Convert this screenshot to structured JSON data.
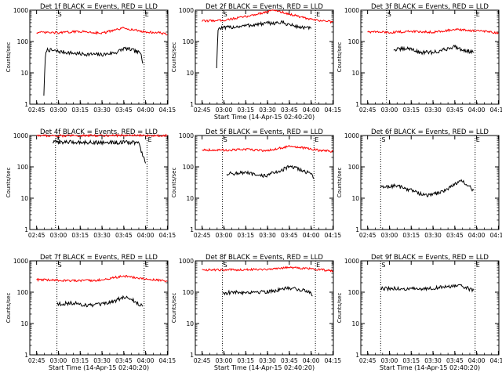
{
  "figure": {
    "x_ticks": [
      "02:45",
      "03:00",
      "03:15",
      "03:30",
      "03:45",
      "04:00",
      "04:15"
    ],
    "y_ticks": [
      "1",
      "10",
      "100",
      "1000"
    ],
    "ylabel": "Counts/sec",
    "xlabel": "Start Time (14-Apr-15 02:40:20)",
    "marker_start": "S",
    "marker_end": "E",
    "colors": {
      "events": "#000000",
      "lld": "#ff0000",
      "axes": "#000000"
    }
  },
  "chart_data": [
    {
      "type": "line",
      "title": "Det 1f BLACK = Events, RED = LLD",
      "xlabel": "Start Time (14-Apr-15 02:40:20)",
      "ylabel": "Counts/sec",
      "yscale": "log",
      "ylim": [
        1,
        1000
      ],
      "xlim_minutes": [
        0,
        95
      ],
      "has_xlabel": false,
      "x_ticks": [
        "02:45",
        "03:00",
        "03:15",
        "03:30",
        "03:45",
        "04:00",
        "04:15"
      ],
      "vlines": [
        "02:59",
        "03:59"
      ],
      "series": [
        {
          "name": "Events",
          "color": "#000000",
          "x": [
            "02:50",
            "02:51",
            "02:52",
            "03:00",
            "03:15",
            "03:30",
            "03:40",
            "03:45",
            "03:50",
            "03:55",
            "03:57",
            "03:58"
          ],
          "y": [
            2,
            30,
            55,
            48,
            40,
            38,
            45,
            60,
            55,
            45,
            40,
            20
          ]
        },
        {
          "name": "LLD",
          "color": "#000000",
          "x": [
            "02:45",
            "03:00",
            "03:15",
            "03:30",
            "03:45",
            "04:00",
            "04:10",
            "04:15"
          ],
          "y": [
            195,
            190,
            210,
            185,
            270,
            200,
            190,
            165
          ]
        }
      ]
    },
    {
      "type": "line",
      "title": "Det 2f BLACK = Events, RED = LLD",
      "xlabel": "Start Time (14-Apr-15 02:40:20)",
      "ylabel": "Counts/sec",
      "yscale": "log",
      "ylim": [
        1,
        1000
      ],
      "xlim_minutes": [
        0,
        95
      ],
      "has_xlabel": true,
      "x_ticks": [
        "02:45",
        "03:00",
        "03:15",
        "03:30",
        "03:45",
        "04:00",
        "04:15"
      ],
      "vlines": [
        "02:59",
        "04:03"
      ],
      "series": [
        {
          "name": "Events",
          "color": "#000000",
          "x": [
            "02:55",
            "02:56",
            "03:00",
            "03:15",
            "03:30",
            "03:40",
            "03:50",
            "04:00"
          ],
          "y": [
            15,
            260,
            270,
            320,
            380,
            400,
            300,
            260
          ]
        },
        {
          "name": "LLD",
          "color": "#000000",
          "x": [
            "02:45",
            "03:00",
            "03:15",
            "03:30",
            "03:35",
            "03:45",
            "04:00",
            "04:10",
            "04:15"
          ],
          "y": [
            450,
            480,
            620,
            900,
            1000,
            750,
            500,
            450,
            420
          ]
        }
      ]
    },
    {
      "type": "line",
      "title": "Det 3f BLACK = Events, RED = LLD",
      "xlabel": "Start Time (14-Apr-15 02:40:20)",
      "ylabel": "Counts/sec",
      "yscale": "log",
      "ylim": [
        1,
        1000
      ],
      "xlim_minutes": [
        0,
        95
      ],
      "has_xlabel": false,
      "x_ticks": [
        "02:45",
        "03:00",
        "03:15",
        "03:30",
        "03:45",
        "04:00",
        "04:15"
      ],
      "vlines": [
        "02:58",
        "03:59"
      ],
      "series": [
        {
          "name": "Events",
          "color": "#000000",
          "x": [
            "03:03",
            "03:15",
            "03:20",
            "03:30",
            "03:35",
            "03:45",
            "03:50",
            "03:58"
          ],
          "y": [
            55,
            60,
            45,
            45,
            50,
            70,
            55,
            45
          ]
        },
        {
          "name": "LLD",
          "color": "#000000",
          "x": [
            "02:45",
            "03:00",
            "03:15",
            "03:30",
            "03:45",
            "04:00",
            "04:10",
            "04:15"
          ],
          "y": [
            205,
            195,
            210,
            200,
            240,
            220,
            200,
            190
          ]
        }
      ]
    },
    {
      "type": "line",
      "title": "Det 4f BLACK = Events, RED = LLD",
      "xlabel": "Start Time (14-Apr-15 02:40:20)",
      "ylabel": "Counts/sec",
      "yscale": "log",
      "ylim": [
        1,
        1000
      ],
      "xlim_minutes": [
        0,
        95
      ],
      "has_xlabel": false,
      "x_ticks": [
        "02:45",
        "03:00",
        "03:15",
        "03:30",
        "03:45",
        "04:00",
        "04:15"
      ],
      "vlines": [
        "02:58",
        "04:01"
      ],
      "series": [
        {
          "name": "Events",
          "color": "#000000",
          "x": [
            "02:56",
            "03:15",
            "03:30",
            "03:45",
            "03:55",
            "04:00"
          ],
          "y": [
            620,
            610,
            600,
            600,
            600,
            130
          ]
        },
        {
          "name": "LLD",
          "color": "#000000",
          "x": [
            "02:45",
            "03:00",
            "03:15",
            "03:30",
            "03:45",
            "04:00",
            "04:15"
          ],
          "y": [
            1000,
            980,
            990,
            1000,
            1010,
            990,
            1000
          ]
        }
      ]
    },
    {
      "type": "line",
      "title": "Det 5f BLACK = Events, RED = LLD",
      "xlabel": "Start Time (14-Apr-15 02:40:20)",
      "ylabel": "Counts/sec",
      "yscale": "log",
      "ylim": [
        1,
        1000
      ],
      "xlim_minutes": [
        0,
        95
      ],
      "has_xlabel": false,
      "x_ticks": [
        "02:45",
        "03:00",
        "03:15",
        "03:30",
        "03:45",
        "04:00",
        "04:15"
      ],
      "vlines": [
        "02:59",
        "04:02"
      ],
      "series": [
        {
          "name": "Events",
          "color": "#000000",
          "x": [
            "03:02",
            "03:15",
            "03:25",
            "03:30",
            "03:40",
            "03:45",
            "03:50",
            "04:00",
            "04:02"
          ],
          "y": [
            60,
            65,
            50,
            55,
            80,
            100,
            90,
            60,
            45
          ]
        },
        {
          "name": "LLD",
          "color": "#000000",
          "x": [
            "02:45",
            "03:00",
            "03:15",
            "03:30",
            "03:45",
            "03:55",
            "04:05",
            "04:15"
          ],
          "y": [
            350,
            340,
            360,
            330,
            450,
            400,
            340,
            310
          ]
        }
      ]
    },
    {
      "type": "line",
      "title": "Det 6f BLACK = Events, RED = LLD",
      "xlabel": "Start Time (14-Apr-15 02:40:20)",
      "ylabel": "Counts/sec",
      "yscale": "log",
      "ylim": [
        1,
        1000
      ],
      "xlim_minutes": [
        0,
        95
      ],
      "has_xlabel": false,
      "x_ticks": [
        "02:45",
        "03:00",
        "03:15",
        "03:30",
        "03:45",
        "04:00",
        "04:15"
      ],
      "vlines": [
        "02:54",
        "03:59"
      ],
      "series": [
        {
          "name": "Events",
          "color": "#000000",
          "x": [
            "02:54",
            "03:05",
            "03:15",
            "03:25",
            "03:35",
            "03:45",
            "03:50",
            "03:58"
          ],
          "y": [
            22,
            25,
            18,
            12,
            15,
            28,
            35,
            18
          ]
        }
      ]
    },
    {
      "type": "line",
      "title": "Det 7f BLACK = Events, RED = LLD",
      "xlabel": "Start Time (14-Apr-15 02:40:20)",
      "ylabel": "Counts/sec",
      "yscale": "log",
      "ylim": [
        1,
        1000
      ],
      "xlim_minutes": [
        0,
        95
      ],
      "has_xlabel": true,
      "x_ticks": [
        "02:45",
        "03:00",
        "03:15",
        "03:30",
        "03:45",
        "04:00",
        "04:15"
      ],
      "vlines": [
        "02:59",
        "03:59"
      ],
      "series": [
        {
          "name": "Events",
          "color": "#000000",
          "x": [
            "02:59",
            "03:10",
            "03:20",
            "03:30",
            "03:40",
            "03:45",
            "03:50",
            "03:58"
          ],
          "y": [
            42,
            45,
            38,
            40,
            55,
            70,
            60,
            35
          ]
        },
        {
          "name": "LLD",
          "color": "#000000",
          "x": [
            "02:45",
            "03:00",
            "03:15",
            "03:30",
            "03:45",
            "04:00",
            "04:10",
            "04:15"
          ],
          "y": [
            250,
            240,
            230,
            245,
            330,
            260,
            240,
            220
          ]
        }
      ]
    },
    {
      "type": "line",
      "title": "Det 8f BLACK = Events, RED = LLD",
      "xlabel": "Start Time (14-Apr-15 02:40:20)",
      "ylabel": "Counts/sec",
      "yscale": "log",
      "ylim": [
        1,
        1000
      ],
      "xlim_minutes": [
        0,
        95
      ],
      "has_xlabel": true,
      "x_ticks": [
        "02:45",
        "03:00",
        "03:15",
        "03:30",
        "03:45",
        "04:00",
        "04:15"
      ],
      "vlines": [
        "02:59",
        "04:03"
      ],
      "series": [
        {
          "name": "Events",
          "color": "#000000",
          "x": [
            "02:59",
            "03:15",
            "03:30",
            "03:40",
            "03:45",
            "03:50",
            "04:00",
            "04:01"
          ],
          "y": [
            95,
            100,
            105,
            120,
            140,
            125,
            100,
            75
          ]
        },
        {
          "name": "LLD",
          "color": "#000000",
          "x": [
            "02:45",
            "03:00",
            "03:15",
            "03:30",
            "03:45",
            "04:00",
            "04:15"
          ],
          "y": [
            520,
            510,
            530,
            540,
            620,
            560,
            480
          ]
        }
      ]
    },
    {
      "type": "line",
      "title": "Det 9f BLACK = Events, RED = LLD",
      "xlabel": "Start Time (14-Apr-15 02:40:20)",
      "ylabel": "Counts/sec",
      "yscale": "log",
      "ylim": [
        1,
        1000
      ],
      "xlim_minutes": [
        0,
        95
      ],
      "has_xlabel": true,
      "x_ticks": [
        "02:45",
        "03:00",
        "03:15",
        "03:30",
        "03:45",
        "04:00",
        "04:15"
      ],
      "vlines": [
        "02:54",
        "03:59"
      ],
      "series": [
        {
          "name": "Events",
          "color": "#000000",
          "x": [
            "02:54",
            "03:10",
            "03:20",
            "03:30",
            "03:40",
            "03:45",
            "03:50",
            "03:58"
          ],
          "y": [
            130,
            128,
            125,
            135,
            150,
            160,
            150,
            115
          ]
        }
      ]
    }
  ]
}
